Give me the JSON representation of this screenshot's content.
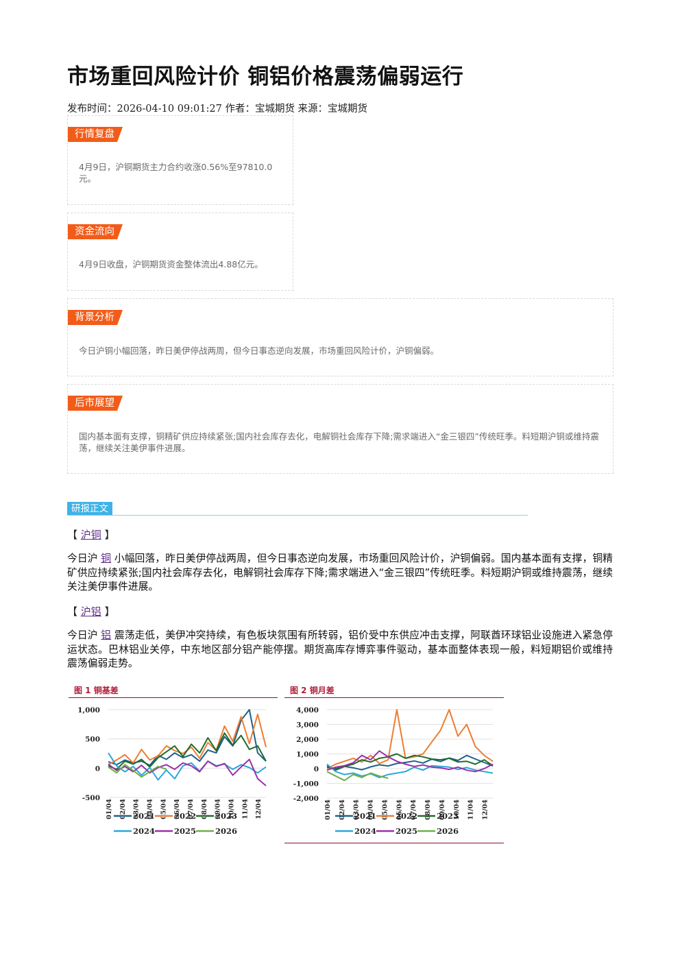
{
  "article": {
    "title": "市场重回风险计价 铜铝价格震荡偏弱运行",
    "meta": "发布时间：2026-04-10 09:01:27 作者：宝城期货 来源：宝城期货"
  },
  "boxes": {
    "market_review": {
      "tag": "行情复盘",
      "text": "4月9日，沪铜期货主力合约收涨0.56%至97810.0元。"
    },
    "fund_flow": {
      "tag": "资金流向",
      "text": "4月9日收盘，沪铜期货资金整体流出4.88亿元。"
    },
    "background": {
      "tag": "背景分析",
      "text": "今日沪铜小幅回落，昨日美伊停战两周，但今日事态逆向发展，市场重回风险计价，沪铜偏弱。"
    },
    "outlook": {
      "tag": "后市展望",
      "text": "国内基本面有支撑，铜精矿供应持续紧张;国内社会库存去化，电解铜社会库存下降;需求端进入“金三银四”传统旺季。料短期沪铜或维持震荡，继续关注美伊事件进展。"
    }
  },
  "report": {
    "section_label": "研报正文",
    "copper": {
      "open": "【 ",
      "link": "沪铜",
      "close": " 】",
      "para_pre": "今日沪 ",
      "para_link": "铜",
      "para_post": " 小幅回落，昨日美伊停战两周，但今日事态逆向发展，市场重回风险计价，沪铜偏弱。国内基本面有支撑，铜精矿供应持续紧张;国内社会库存去化，电解铜社会库存下降;需求端进入“金三银四”传统旺季。料短期沪铜或维持震荡，继续关注美伊事件进展。"
    },
    "aluminum": {
      "open": "【 ",
      "link": "沪铝",
      "close": " 】",
      "para_pre": "今日沪 ",
      "para_link": "铝",
      "para_post": " 震荡走低，美伊冲突持续，有色板块氛围有所转弱，铝价受中东供应冲击支撑，阿联酋环球铝业设施进入紧急停运状态。巴林铝业关停，中东地区部分铝产能停摆。期货高库存博弈事件驱动，基本面整体表现一般，料短期铝价或维持震荡偏弱走势。"
    }
  },
  "figures": {
    "fig1_caption": "图 1   铜基差",
    "fig2_caption": "图 2   铜月差"
  },
  "colors": {
    "2021": "#1f5f8b",
    "2022": "#ed7d31",
    "2023": "#1e6b2a",
    "2024": "#2aa7d8",
    "2025": "#9b2fa8",
    "2026": "#70ad47"
  },
  "chart_data": [
    {
      "type": "line",
      "title": "铜基差",
      "ylim": [
        -500,
        1000
      ],
      "yticks": [
        -500,
        0,
        500,
        1000
      ],
      "ytick_labels": [
        "-500",
        "0",
        "500",
        "1,000"
      ],
      "xticks": [
        "01/04",
        "02/04",
        "03/04",
        "04/04",
        "05/04",
        "06/04",
        "07/04",
        "08/04",
        "09/04",
        "10/04",
        "11/04",
        "12/04"
      ],
      "legend": [
        "2021",
        "2022",
        "2023",
        "2024",
        "2025",
        "2026"
      ],
      "series": [
        {
          "name": "2021",
          "values": [
            110,
            60,
            140,
            90,
            120,
            50,
            220,
            150,
            260,
            180,
            230,
            120,
            310,
            260,
            540,
            380,
            820,
            1000,
            260,
            120
          ]
        },
        {
          "name": "2022",
          "values": [
            60,
            140,
            230,
            90,
            320,
            140,
            210,
            380,
            300,
            250,
            360,
            170,
            440,
            300,
            720,
            460,
            880,
            420,
            920,
            360
          ]
        },
        {
          "name": "2023",
          "values": [
            40,
            -20,
            120,
            70,
            150,
            20,
            180,
            280,
            380,
            200,
            410,
            260,
            520,
            300,
            600,
            390,
            560,
            320,
            380,
            120
          ]
        },
        {
          "name": "2024",
          "values": [
            260,
            40,
            -60,
            30,
            -120,
            10,
            -200,
            -30,
            -180,
            40,
            90,
            -50,
            120,
            40,
            70,
            -20,
            60,
            10,
            -80,
            20
          ]
        },
        {
          "name": "2025",
          "values": [
            70,
            -40,
            30,
            -60,
            50,
            -80,
            10,
            60,
            -20,
            90,
            40,
            -60,
            120,
            30,
            80,
            -120,
            20,
            150,
            -180,
            -300
          ]
        },
        {
          "name": "2026",
          "values": [
            20,
            -80,
            60,
            -40,
            -150,
            -60,
            30,
            -20
          ]
        }
      ]
    },
    {
      "type": "line",
      "title": "铜月差",
      "ylim": [
        -2000,
        4000
      ],
      "yticks": [
        -2000,
        -1000,
        0,
        1000,
        2000,
        3000,
        4000
      ],
      "ytick_labels": [
        "-2,000",
        "-1,000",
        "0",
        "1,000",
        "2,000",
        "3,000",
        "4,000"
      ],
      "xticks": [
        "01/04",
        "02/04",
        "03/04",
        "04/04",
        "05/04",
        "06/04",
        "07/04",
        "08/04",
        "09/04",
        "10/04",
        "11/04",
        "12/04"
      ],
      "legend": [
        "2021",
        "2022",
        "2023",
        "2024",
        "2025",
        "2026"
      ],
      "series": [
        {
          "name": "2021",
          "values": [
            200,
            -100,
            150,
            60,
            -80,
            120,
            260,
            180,
            350,
            420,
            520,
            380,
            640,
            480,
            720,
            560,
            900,
            650,
            420,
            180
          ]
        },
        {
          "name": "2022",
          "values": [
            0,
            300,
            500,
            700,
            450,
            900,
            350,
            600,
            4000,
            700,
            800,
            1000,
            1800,
            2600,
            4000,
            2200,
            3000,
            1500,
            900,
            500
          ]
        },
        {
          "name": "2023",
          "values": [
            100,
            0,
            150,
            300,
            600,
            450,
            700,
            800,
            1000,
            700,
            900,
            800,
            650,
            600,
            700,
            450,
            500,
            300,
            600,
            200
          ]
        },
        {
          "name": "2024",
          "values": [
            300,
            -200,
            -400,
            -300,
            -500,
            -350,
            -600,
            -400,
            -300,
            -200,
            100,
            -100,
            200,
            150,
            100,
            -50,
            80,
            -100,
            -200,
            -300
          ]
        },
        {
          "name": "2025",
          "values": [
            -100,
            100,
            200,
            400,
            900,
            600,
            1200,
            800,
            500,
            300,
            150,
            250,
            100,
            50,
            -50,
            100,
            -100,
            -200,
            0,
            300
          ]
        },
        {
          "name": "2026",
          "values": [
            -200,
            -500,
            -800,
            -400,
            -600,
            -300,
            -500,
            -650
          ]
        }
      ]
    }
  ]
}
